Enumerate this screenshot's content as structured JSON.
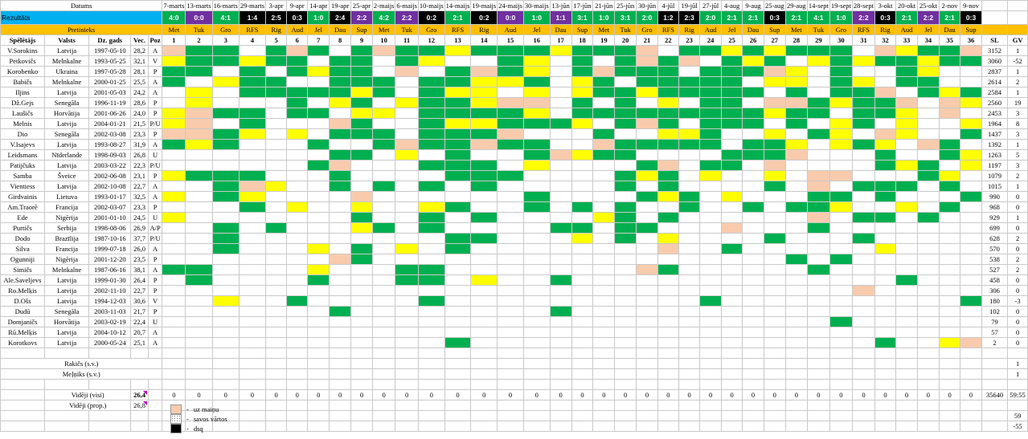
{
  "header": {
    "datums_label": "Datums",
    "rezultats_label": "Rezultāts",
    "pretinieks_label": "Pretinieks"
  },
  "matches": [
    {
      "date": "7-marts",
      "result": "4:0",
      "color": "#00b050",
      "opp": "Met"
    },
    {
      "date": "13-marts",
      "result": "0:0",
      "color": "#7030a0",
      "opp": "Tuk"
    },
    {
      "date": "16-marts",
      "result": "4:1",
      "color": "#00b050",
      "opp": "Gro"
    },
    {
      "date": "29-marts",
      "result": "1:4",
      "color": "#000000",
      "opp": "RFS"
    },
    {
      "date": "3-apr",
      "result": "2:5",
      "color": "#000000",
      "opp": "Rig"
    },
    {
      "date": "9-apr",
      "result": "0:3",
      "color": "#000000",
      "opp": "Aud"
    },
    {
      "date": "14-apr",
      "result": "1:0",
      "color": "#00b050",
      "opp": "Jel"
    },
    {
      "date": "19-apr",
      "result": "2:4",
      "color": "#000000",
      "opp": "Dau"
    },
    {
      "date": "25-apr",
      "result": "2:2",
      "color": "#7030a0",
      "opp": "Sup"
    },
    {
      "date": "2-maijs",
      "result": "4:2",
      "color": "#00b050",
      "opp": "Met"
    },
    {
      "date": "6-maijs",
      "result": "2:2",
      "color": "#7030a0",
      "opp": "Tuk"
    },
    {
      "date": "10-maijs",
      "result": "0:2",
      "color": "#000000",
      "opp": "Gro"
    },
    {
      "date": "14-maijs",
      "result": "2:1",
      "color": "#00b050",
      "opp": "RFS"
    },
    {
      "date": "19-maijs",
      "result": "0:2",
      "color": "#000000",
      "opp": "Rig"
    },
    {
      "date": "24-maijs",
      "result": "0:0",
      "color": "#7030a0",
      "opp": "Aud"
    },
    {
      "date": "30-maijs",
      "result": "1:0",
      "color": "#00b050",
      "opp": "Jel"
    },
    {
      "date": "13-jūn",
      "result": "1:1",
      "color": "#7030a0",
      "opp": "Dau"
    },
    {
      "date": "17-jūn",
      "result": "3:1",
      "color": "#00b050",
      "opp": "Sup"
    },
    {
      "date": "21-jūn",
      "result": "1:0",
      "color": "#00b050",
      "opp": "Met"
    },
    {
      "date": "25-jūn",
      "result": "3:1",
      "color": "#00b050",
      "opp": "Tuk"
    },
    {
      "date": "30-jūn",
      "result": "2:0",
      "color": "#00b050",
      "opp": "Gro"
    },
    {
      "date": "4-jūl",
      "result": "1:2",
      "color": "#000000",
      "opp": "RFS"
    },
    {
      "date": "19-jūl",
      "result": "2:3",
      "color": "#000000",
      "opp": "Rig"
    },
    {
      "date": "27-jūl",
      "result": "2:0",
      "color": "#00b050",
      "opp": "Aud"
    },
    {
      "date": "4-aug",
      "result": "2:1",
      "color": "#00b050",
      "opp": "Jel"
    },
    {
      "date": "9-aug",
      "result": "2:1",
      "color": "#00b050",
      "opp": "Dau"
    },
    {
      "date": "25-aug",
      "result": "0:3",
      "color": "#000000",
      "opp": "Sup"
    },
    {
      "date": "29-aug",
      "result": "2:1",
      "color": "#00b050",
      "opp": "Met"
    },
    {
      "date": "14-sept",
      "result": "4:1",
      "color": "#00b050",
      "opp": "Tuk"
    },
    {
      "date": "19-sept",
      "result": "1:0",
      "color": "#00b050",
      "opp": "Gro"
    },
    {
      "date": "28-sept",
      "result": "2:2",
      "color": "#7030a0",
      "opp": "RFS"
    },
    {
      "date": "3-okt",
      "result": "0:3",
      "color": "#000000",
      "opp": "Rig"
    },
    {
      "date": "20-okt",
      "result": "2:1",
      "color": "#00b050",
      "opp": "Aud"
    },
    {
      "date": "25-okt",
      "result": "2:2",
      "color": "#7030a0",
      "opp": "Jel"
    },
    {
      "date": "2-nov",
      "result": "2:1",
      "color": "#00b050",
      "opp": "Dau"
    },
    {
      "date": "9-nov",
      "result": "0:3",
      "color": "#000000",
      "opp": "Sup"
    }
  ],
  "columns": {
    "player": "Spēlētājs",
    "country": "Valsts",
    "dob": "Dz. gads",
    "age": "Vec.",
    "pos": "Poz",
    "sl": "SL",
    "gv": "GV"
  },
  "players": [
    {
      "name": "V.Sorokins",
      "country": "Latvija",
      "dob": "1997-05-10",
      "age": "28,2",
      "pos": "A",
      "sl": "3152",
      "gv": "1"
    },
    {
      "name": "Petkovičs",
      "country": "Melnkalne",
      "dob": "1993-05-25",
      "age": "32,1",
      "pos": "V",
      "sl": "3060",
      "gv": "-52"
    },
    {
      "name": "Korobenko",
      "country": "Ukraina",
      "dob": "1997-05-28",
      "age": "28,1",
      "pos": "P",
      "sl": "2837",
      "gv": "1"
    },
    {
      "name": "Babičs",
      "country": "Melnkalne",
      "dob": "2000-01-25",
      "age": "25,5",
      "pos": "A",
      "sl": "2614",
      "gv": "2"
    },
    {
      "name": "Iljins",
      "country": "Latvija",
      "dob": "2001-05-03",
      "age": "24,2",
      "pos": "A",
      "sl": "2584",
      "gv": "1"
    },
    {
      "name": "Dž.Gejs",
      "country": "Senegāla",
      "dob": "1996-11-19",
      "age": "28,6",
      "pos": "P",
      "sl": "2560",
      "gv": "19"
    },
    {
      "name": "Laušičs",
      "country": "Horvātija",
      "dob": "2001-06-26",
      "age": "24,0",
      "pos": "P",
      "sl": "2453",
      "gv": "3"
    },
    {
      "name": "Melnis",
      "country": "Latvija",
      "dob": "2004-01-21",
      "age": "21,5",
      "pos": "P/U",
      "sl": "1964",
      "gv": "8"
    },
    {
      "name": "Dio",
      "country": "Senegāla",
      "dob": "2002-03-08",
      "age": "23,3",
      "pos": "P",
      "sl": "1437",
      "gv": "3"
    },
    {
      "name": "V.Isajevs",
      "country": "Latvija",
      "dob": "1993-08-27",
      "age": "31,9",
      "pos": "A",
      "sl": "1392",
      "gv": "1"
    },
    {
      "name": "Leidsmans",
      "country": "Nīderlande",
      "dob": "1998-09-03",
      "age": "26,8",
      "pos": "U",
      "sl": "1263",
      "gv": "5"
    },
    {
      "name": "Patijčuks",
      "country": "Latvija",
      "dob": "2003-03-22",
      "age": "22,3",
      "pos": "P/U",
      "sl": "1197",
      "gv": "3"
    },
    {
      "name": "Samba",
      "country": "Šveice",
      "dob": "2002-06-08",
      "age": "23,1",
      "pos": "P",
      "sl": "1079",
      "gv": "2"
    },
    {
      "name": "Vientiess",
      "country": "Latvija",
      "dob": "2002-10-08",
      "age": "22,7",
      "pos": "A",
      "sl": "1015",
      "gv": "1"
    },
    {
      "name": "Girdvainis",
      "country": "Lietuva",
      "dob": "1993-01-17",
      "age": "32,5",
      "pos": "A",
      "sl": "990",
      "gv": "0"
    },
    {
      "name": "Am.Traorē",
      "country": "Francija",
      "dob": "2002-03-07",
      "age": "23,3",
      "pos": "P",
      "sl": "968",
      "gv": "0"
    },
    {
      "name": "Ede",
      "country": "Nigērija",
      "dob": "2001-01-10",
      "age": "24,5",
      "pos": "U",
      "sl": "929",
      "gv": "1"
    },
    {
      "name": "Purtičs",
      "country": "Serbija",
      "dob": "1998-08-06",
      "age": "26,9",
      "pos": "A/P",
      "sl": "699",
      "gv": "0"
    },
    {
      "name": "Dodo",
      "country": "Brazīlija",
      "dob": "1987-10-16",
      "age": "37,7",
      "pos": "P/U",
      "sl": "628",
      "gv": "2"
    },
    {
      "name": "Silva",
      "country": "Francija",
      "dob": "1999-07-18",
      "age": "26,0",
      "pos": "A",
      "sl": "570",
      "gv": "0"
    },
    {
      "name": "Ogunniji",
      "country": "Nigērija",
      "dob": "2001-12-20",
      "age": "23,5",
      "pos": "P",
      "sl": "538",
      "gv": "2"
    },
    {
      "name": "Simičs",
      "country": "Melnkalne",
      "dob": "1987-06-16",
      "age": "38,1",
      "pos": "A",
      "sl": "527",
      "gv": "2"
    },
    {
      "name": "Ale.Saveljevs",
      "country": "Latvija",
      "dob": "1999-01-30",
      "age": "26,4",
      "pos": "P",
      "sl": "458",
      "gv": "0"
    },
    {
      "name": "Ro.Melķis",
      "country": "Latvija",
      "dob": "2002-11-10",
      "age": "22,7",
      "pos": "P",
      "sl": "306",
      "gv": "0"
    },
    {
      "name": "D.Ošs",
      "country": "Latvija",
      "dob": "1994-12-03",
      "age": "30,6",
      "pos": "V",
      "sl": "180",
      "gv": "-3"
    },
    {
      "name": "Dudū",
      "country": "Senegāla",
      "dob": "2003-11-03",
      "age": "21,7",
      "pos": "P",
      "sl": "102",
      "gv": "0"
    },
    {
      "name": "Domjaničs",
      "country": "Horvātija",
      "dob": "2003-02-19",
      "age": "22,4",
      "pos": "U",
      "sl": "79",
      "gv": "0"
    },
    {
      "name": "Rū.Melķis",
      "country": "Latvija",
      "dob": "2004-10-12",
      "age": "20,7",
      "pos": "A",
      "sl": "57",
      "gv": "0"
    },
    {
      "name": "Korotkovs",
      "country": "Latvija",
      "dob": "2000-05-24",
      "age": "25,1",
      "pos": "A",
      "sl": "2",
      "gv": "0"
    }
  ],
  "extra_rows": [
    {
      "name": "Rakičs (s.v.)",
      "gv": "1"
    },
    {
      "name": "Meļņiks (s.v.)",
      "gv": "1"
    }
  ],
  "summary": {
    "avg_all_label": "Vidēji (visi)",
    "avg_all": "26,4",
    "avg_prop_label": "Vidēji (prop.)",
    "avg_prop": "26,8",
    "sl_total": "35640",
    "gv_total": "59:55",
    "right1": "59",
    "right2": "-55"
  },
  "legend": [
    {
      "label": "uz maiņu",
      "color": "#f8cbad"
    },
    {
      "label": "savos vārtos",
      "color": "dots"
    },
    {
      "label": "dsq",
      "color": "#000000"
    }
  ],
  "cell_colors": {
    "salmon": "#f8cbad",
    "yellow": "#ffff00",
    "green": "#00b050",
    "black": "#000000",
    "red": "#ff0000"
  }
}
